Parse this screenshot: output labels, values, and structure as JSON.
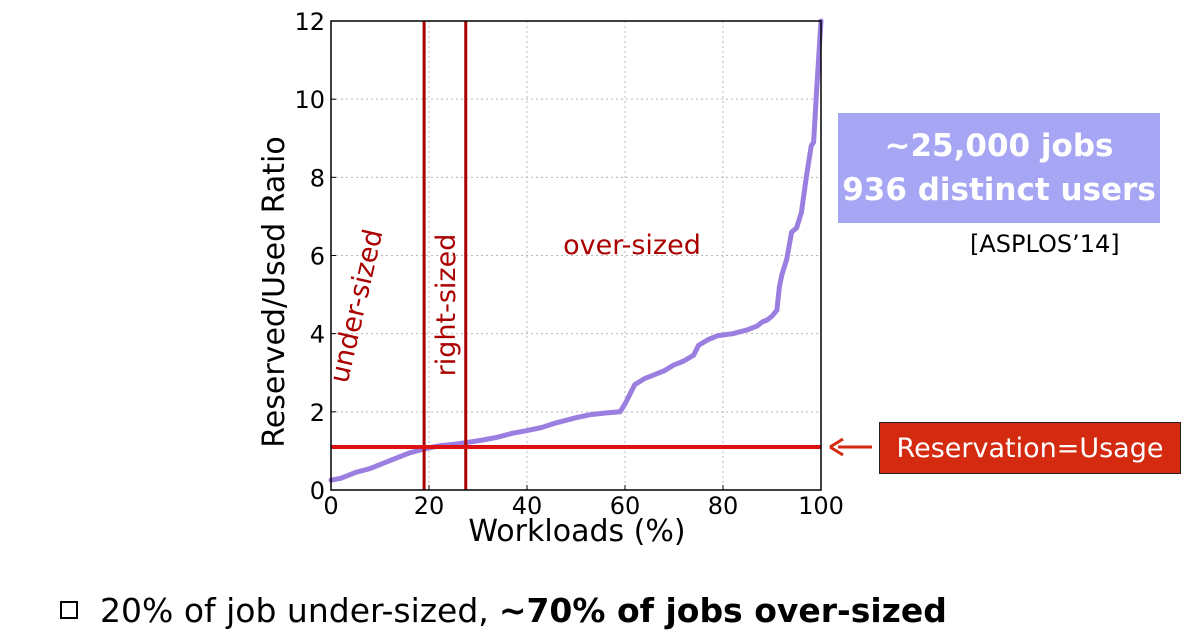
{
  "chart_data": {
    "type": "line",
    "xlabel": "Workloads (%)",
    "ylabel": "Reserved/Used Ratio",
    "xlim": [
      0,
      100
    ],
    "ylim": [
      0,
      12
    ],
    "xticks": [
      "0",
      "20",
      "40",
      "60",
      "80",
      "100"
    ],
    "yticks": [
      "0",
      "2",
      "4",
      "6",
      "8",
      "10",
      "12"
    ],
    "grid": true,
    "series": [
      {
        "x": [
          0,
          2,
          5,
          8,
          10,
          13,
          16,
          19,
          22,
          25,
          28,
          31,
          34,
          37,
          40,
          43,
          46,
          50,
          53,
          56,
          59,
          60,
          61,
          62,
          64,
          66,
          68,
          70,
          72,
          74,
          75,
          77,
          79,
          82,
          85,
          87,
          88,
          89,
          90,
          91,
          91.5,
          92,
          93,
          94,
          95,
          96,
          97,
          98,
          98.5,
          99,
          99.5,
          100
        ],
        "y": [
          0.25,
          0.3,
          0.45,
          0.55,
          0.65,
          0.8,
          0.95,
          1.05,
          1.13,
          1.17,
          1.22,
          1.28,
          1.35,
          1.45,
          1.52,
          1.6,
          1.72,
          1.85,
          1.93,
          1.97,
          2.0,
          2.2,
          2.45,
          2.7,
          2.85,
          2.95,
          3.05,
          3.2,
          3.3,
          3.45,
          3.7,
          3.85,
          3.95,
          4.0,
          4.1,
          4.2,
          4.3,
          4.35,
          4.45,
          4.6,
          5.2,
          5.5,
          5.9,
          6.6,
          6.7,
          7.1,
          8.0,
          8.8,
          8.9,
          10.0,
          11.0,
          12.0
        ],
        "color": "#9b7fe0"
      }
    ],
    "vlines": [
      {
        "x": 19,
        "color": "#aa0000"
      },
      {
        "x": 27.5,
        "color": "#aa0000"
      }
    ],
    "hline": {
      "y": 1.1,
      "color": "#dd1111"
    },
    "annotations": [
      "under-sized",
      "right-sized",
      "over-sized"
    ]
  },
  "regions": {
    "under": "under-sized",
    "right": "right-sized",
    "over": "over-sized"
  },
  "stat_box": {
    "line1": "~25,000 jobs",
    "line2": "936 distinct users",
    "color": "#a6a6f5"
  },
  "citation": "[ASPLOS’14]",
  "callout": {
    "label": "Reservation=Usage",
    "color": "#d42a10"
  },
  "bullet": {
    "normal": "20% of job under-sized,",
    "bold": "~70% of jobs over-sized"
  }
}
